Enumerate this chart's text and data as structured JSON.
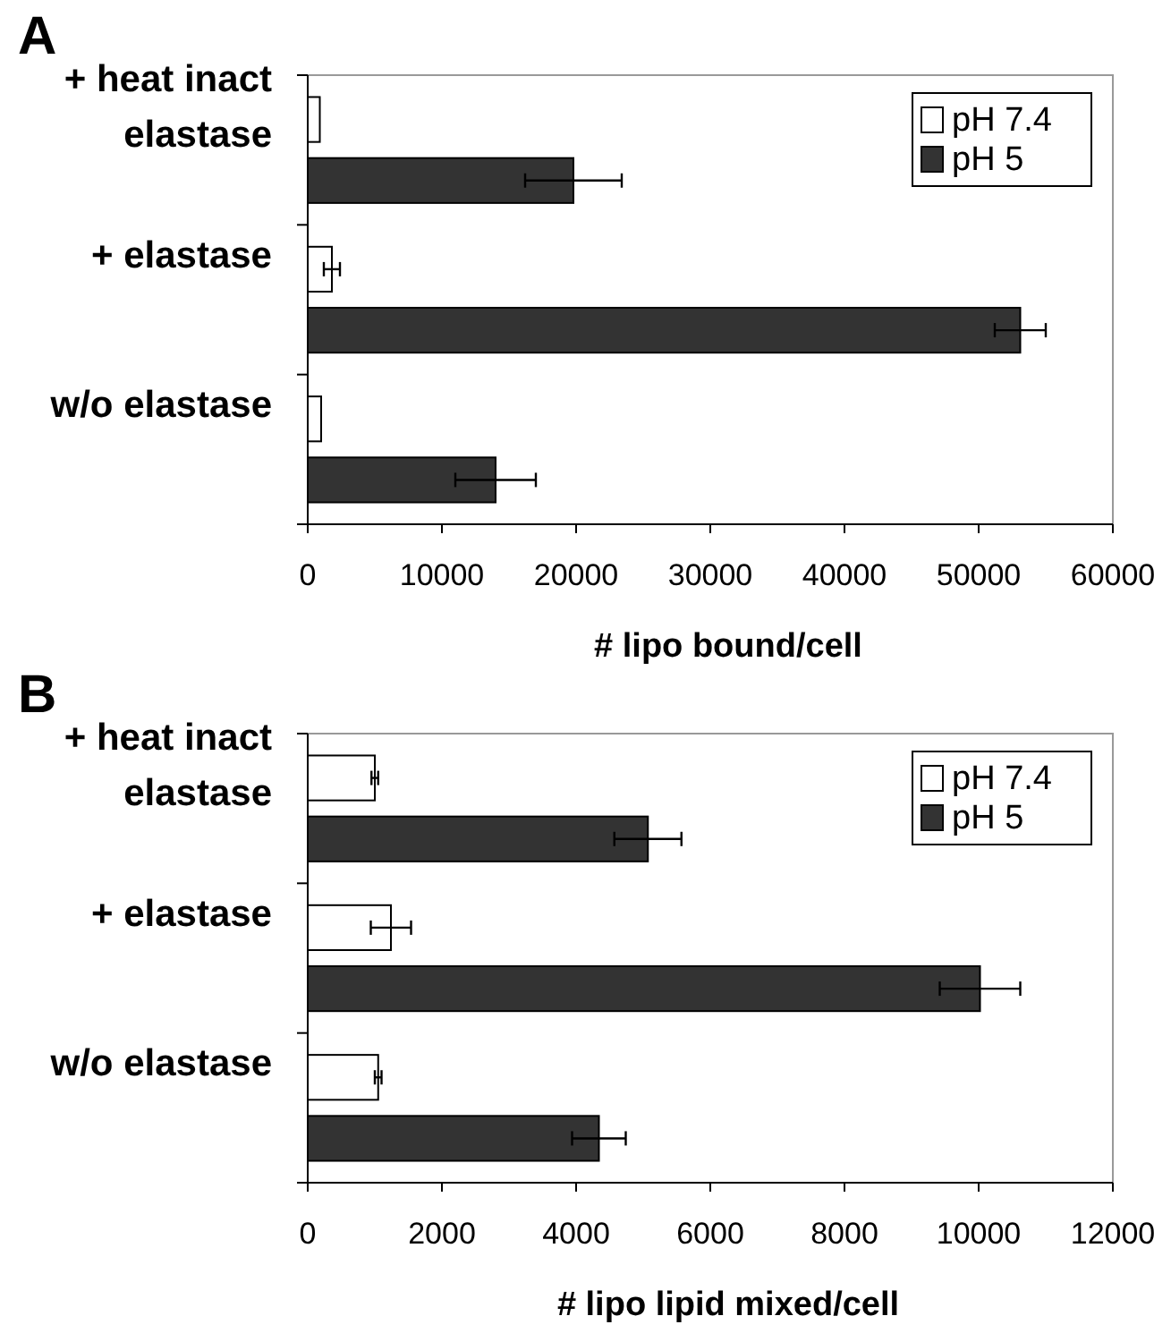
{
  "chart_data": [
    {
      "type": "bar",
      "title": "A",
      "orientation": "horizontal",
      "categories": [
        "+ heat inact elastase",
        "+ elastase",
        "w/o elastase"
      ],
      "xlabel": "# lipo bound/cell",
      "xlim": [
        0,
        60000
      ],
      "xticks": [
        0,
        10000,
        20000,
        30000,
        40000,
        50000,
        60000
      ],
      "legend": "top right",
      "series": [
        {
          "name": "pH 7.4",
          "color": "#ffffff",
          "values": [
            900,
            1800,
            1000
          ],
          "errors": [
            null,
            600,
            null
          ]
        },
        {
          "name": "pH 5",
          "color": "#333333",
          "values": [
            19800,
            53100,
            14000
          ],
          "errors": [
            3600,
            1900,
            3000
          ]
        }
      ]
    },
    {
      "type": "bar",
      "title": "B",
      "orientation": "horizontal",
      "categories": [
        "+ heat inact elastase",
        "+ elastase",
        "w/o elastase"
      ],
      "xlabel": "# lipo lipid mixed/cell",
      "xlim": [
        0,
        12000
      ],
      "xticks": [
        0,
        2000,
        4000,
        6000,
        8000,
        10000,
        12000
      ],
      "legend": "top right",
      "series": [
        {
          "name": "pH 7.4",
          "color": "#ffffff",
          "values": [
            1000,
            1240,
            1050
          ],
          "errors": [
            50,
            300,
            50
          ]
        },
        {
          "name": "pH 5",
          "color": "#333333",
          "values": [
            5070,
            10020,
            4340
          ],
          "errors": [
            500,
            600,
            400
          ]
        }
      ]
    }
  ]
}
